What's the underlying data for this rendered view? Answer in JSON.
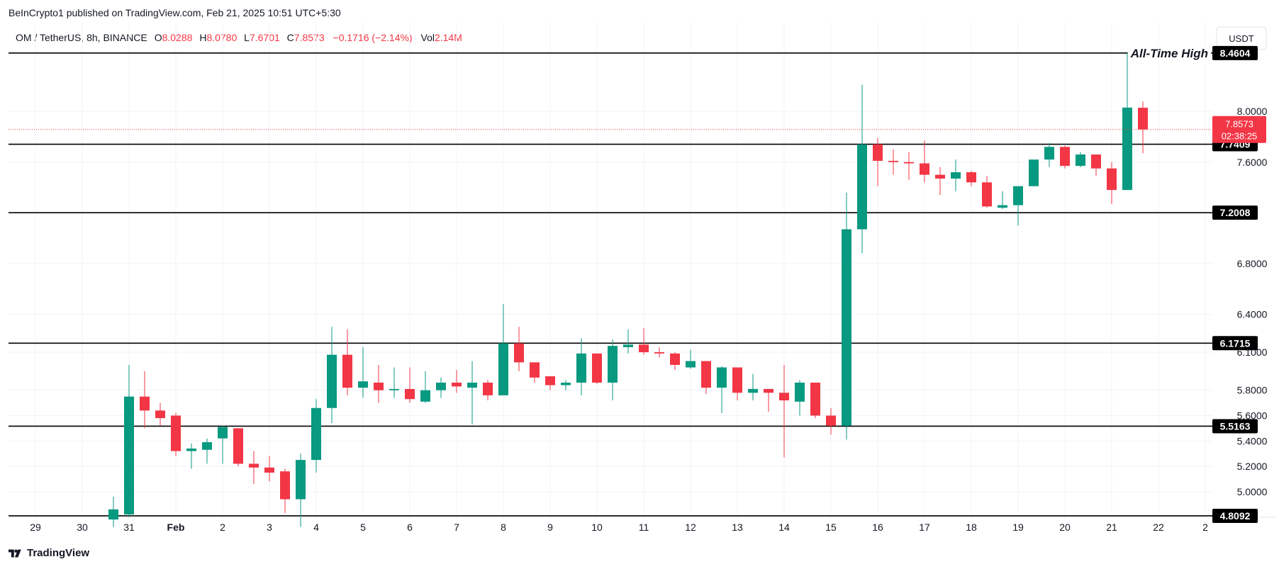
{
  "header": {
    "published": "BeInCrypto1 published on TradingView.com, Feb 21, 2025 10:51 UTC+5:30",
    "symbol": "OM / TetherUS, 8h, BINANCE",
    "o_label": "O",
    "o_value": "8.0288",
    "h_label": "H",
    "h_value": "8.0780",
    "l_label": "L",
    "l_value": "7.6701",
    "c_label": "C",
    "c_value": "7.8573",
    "change": "−0.1716 (−2.14%)",
    "vol_label": "Vol",
    "vol_value": "2.14M"
  },
  "toolbar": {
    "currency_button": "USDT"
  },
  "annotation": {
    "ath_text": "All-Time High"
  },
  "current_price": {
    "price": "7.8573",
    "countdown": "02:38:25"
  },
  "footer": {
    "brand": "TradingView"
  },
  "colors": {
    "up": "#089981",
    "down": "#f23645",
    "level": "#000000",
    "grid": "#f0f3fa",
    "text": "#131722"
  },
  "chart_data": {
    "type": "candlestick",
    "title": "OM / TetherUS, 8h, BINANCE",
    "xlabel": "",
    "ylabel": "",
    "ylim": [
      4.63,
      8.7
    ],
    "y_ticks": [
      "8.0000",
      "7.6000",
      "6.8000",
      "6.4000",
      "6.1000",
      "5.8000",
      "5.6000",
      "5.4000",
      "5.2000",
      "5.0000"
    ],
    "x_ticks": [
      {
        "label": "29",
        "t": -5
      },
      {
        "label": "30",
        "t": -2
      },
      {
        "label": "31",
        "t": 1
      },
      {
        "label": "Feb",
        "t": 4
      },
      {
        "label": "2",
        "t": 7
      },
      {
        "label": "3",
        "t": 10
      },
      {
        "label": "4",
        "t": 13
      },
      {
        "label": "5",
        "t": 16
      },
      {
        "label": "6",
        "t": 19
      },
      {
        "label": "7",
        "t": 22
      },
      {
        "label": "8",
        "t": 25
      },
      {
        "label": "9",
        "t": 28
      },
      {
        "label": "10",
        "t": 31
      },
      {
        "label": "11",
        "t": 34
      },
      {
        "label": "12",
        "t": 37
      },
      {
        "label": "13",
        "t": 40
      },
      {
        "label": "14",
        "t": 43
      },
      {
        "label": "15",
        "t": 46
      },
      {
        "label": "16",
        "t": 49
      },
      {
        "label": "17",
        "t": 52
      },
      {
        "label": "18",
        "t": 55
      },
      {
        "label": "19",
        "t": 58
      },
      {
        "label": "20",
        "t": 61
      },
      {
        "label": "21",
        "t": 64
      },
      {
        "label": "22",
        "t": 67
      },
      {
        "label": "2",
        "t": 70
      }
    ],
    "levels": [
      {
        "value": 8.4604,
        "label": "8.4604"
      },
      {
        "value": 7.7409,
        "label": "7.7409"
      },
      {
        "value": 7.2008,
        "label": "7.2008"
      },
      {
        "value": 6.1715,
        "label": "6.1715"
      },
      {
        "value": 5.5163,
        "label": "5.5163"
      },
      {
        "value": 4.8092,
        "label": "4.8092"
      }
    ],
    "candles": [
      {
        "o": 4.78,
        "h": 4.96,
        "l": 4.72,
        "c": 4.86
      },
      {
        "o": 4.82,
        "h": 6.0,
        "l": 4.8,
        "c": 5.75
      },
      {
        "o": 5.75,
        "h": 5.95,
        "l": 5.5,
        "c": 5.64
      },
      {
        "o": 5.64,
        "h": 5.7,
        "l": 5.52,
        "c": 5.58
      },
      {
        "o": 5.6,
        "h": 5.62,
        "l": 5.28,
        "c": 5.32
      },
      {
        "o": 5.32,
        "h": 5.38,
        "l": 5.18,
        "c": 5.34
      },
      {
        "o": 5.33,
        "h": 5.42,
        "l": 5.22,
        "c": 5.39
      },
      {
        "o": 5.42,
        "h": 5.52,
        "l": 5.22,
        "c": 5.51
      },
      {
        "o": 5.5,
        "h": 5.5,
        "l": 5.2,
        "c": 5.22
      },
      {
        "o": 5.22,
        "h": 5.32,
        "l": 5.06,
        "c": 5.19
      },
      {
        "o": 5.19,
        "h": 5.28,
        "l": 5.08,
        "c": 5.15
      },
      {
        "o": 5.16,
        "h": 5.18,
        "l": 4.83,
        "c": 4.94
      },
      {
        "o": 4.94,
        "h": 5.3,
        "l": 4.72,
        "c": 5.25
      },
      {
        "o": 5.25,
        "h": 5.73,
        "l": 5.15,
        "c": 5.66
      },
      {
        "o": 5.66,
        "h": 6.3,
        "l": 5.54,
        "c": 6.08
      },
      {
        "o": 6.08,
        "h": 6.28,
        "l": 5.76,
        "c": 5.82
      },
      {
        "o": 5.82,
        "h": 6.14,
        "l": 5.74,
        "c": 5.87
      },
      {
        "o": 5.86,
        "h": 6.0,
        "l": 5.7,
        "c": 5.8
      },
      {
        "o": 5.8,
        "h": 5.98,
        "l": 5.74,
        "c": 5.81
      },
      {
        "o": 5.81,
        "h": 5.98,
        "l": 5.7,
        "c": 5.73
      },
      {
        "o": 5.71,
        "h": 5.95,
        "l": 5.7,
        "c": 5.8
      },
      {
        "o": 5.8,
        "h": 5.9,
        "l": 5.74,
        "c": 5.86
      },
      {
        "o": 5.86,
        "h": 5.96,
        "l": 5.78,
        "c": 5.83
      },
      {
        "o": 5.82,
        "h": 6.03,
        "l": 5.53,
        "c": 5.86
      },
      {
        "o": 5.86,
        "h": 5.88,
        "l": 5.72,
        "c": 5.76
      },
      {
        "o": 5.76,
        "h": 6.48,
        "l": 5.77,
        "c": 6.17
      },
      {
        "o": 6.17,
        "h": 6.3,
        "l": 5.95,
        "c": 6.02
      },
      {
        "o": 6.02,
        "h": 6.02,
        "l": 5.86,
        "c": 5.9
      },
      {
        "o": 5.91,
        "h": 5.9,
        "l": 5.8,
        "c": 5.84
      },
      {
        "o": 5.84,
        "h": 5.88,
        "l": 5.8,
        "c": 5.86
      },
      {
        "o": 5.86,
        "h": 6.21,
        "l": 5.76,
        "c": 6.09
      },
      {
        "o": 6.09,
        "h": 6.09,
        "l": 5.85,
        "c": 5.86
      },
      {
        "o": 5.86,
        "h": 6.2,
        "l": 5.72,
        "c": 6.15
      },
      {
        "o": 6.14,
        "h": 6.28,
        "l": 6.09,
        "c": 6.16
      },
      {
        "o": 6.16,
        "h": 6.29,
        "l": 6.08,
        "c": 6.1
      },
      {
        "o": 6.1,
        "h": 6.14,
        "l": 6.06,
        "c": 6.09
      },
      {
        "o": 6.09,
        "h": 6.1,
        "l": 5.96,
        "c": 6.0
      },
      {
        "o": 5.98,
        "h": 6.12,
        "l": 5.97,
        "c": 6.03
      },
      {
        "o": 6.03,
        "h": 6.03,
        "l": 5.77,
        "c": 5.82
      },
      {
        "o": 5.82,
        "h": 5.99,
        "l": 5.62,
        "c": 5.98
      },
      {
        "o": 5.98,
        "h": 5.98,
        "l": 5.72,
        "c": 5.78
      },
      {
        "o": 5.78,
        "h": 5.93,
        "l": 5.72,
        "c": 5.81
      },
      {
        "o": 5.81,
        "h": 5.81,
        "l": 5.63,
        "c": 5.78
      },
      {
        "o": 5.78,
        "h": 6.0,
        "l": 5.27,
        "c": 5.72
      },
      {
        "o": 5.71,
        "h": 5.88,
        "l": 5.6,
        "c": 5.86
      },
      {
        "o": 5.86,
        "h": 5.86,
        "l": 5.58,
        "c": 5.6
      },
      {
        "o": 5.6,
        "h": 5.66,
        "l": 5.45,
        "c": 5.52
      },
      {
        "o": 5.52,
        "h": 7.36,
        "l": 5.41,
        "c": 7.07
      },
      {
        "o": 7.07,
        "h": 8.21,
        "l": 6.88,
        "c": 7.74
      },
      {
        "o": 7.74,
        "h": 7.79,
        "l": 7.41,
        "c": 7.61
      },
      {
        "o": 7.61,
        "h": 7.7,
        "l": 7.5,
        "c": 7.6
      },
      {
        "o": 7.6,
        "h": 7.68,
        "l": 7.46,
        "c": 7.59
      },
      {
        "o": 7.59,
        "h": 7.77,
        "l": 7.44,
        "c": 7.5
      },
      {
        "o": 7.5,
        "h": 7.56,
        "l": 7.34,
        "c": 7.47
      },
      {
        "o": 7.47,
        "h": 7.62,
        "l": 7.37,
        "c": 7.52
      },
      {
        "o": 7.52,
        "h": 7.53,
        "l": 7.41,
        "c": 7.44
      },
      {
        "o": 7.44,
        "h": 7.49,
        "l": 7.24,
        "c": 7.25
      },
      {
        "o": 7.24,
        "h": 7.37,
        "l": 7.23,
        "c": 7.26
      },
      {
        "o": 7.26,
        "h": 7.39,
        "l": 7.1,
        "c": 7.41
      },
      {
        "o": 7.41,
        "h": 7.6,
        "l": 7.41,
        "c": 7.62
      },
      {
        "o": 7.62,
        "h": 7.75,
        "l": 7.56,
        "c": 7.72
      },
      {
        "o": 7.72,
        "h": 7.73,
        "l": 7.55,
        "c": 7.57
      },
      {
        "o": 7.57,
        "h": 7.68,
        "l": 7.56,
        "c": 7.66
      },
      {
        "o": 7.66,
        "h": 7.66,
        "l": 7.49,
        "c": 7.55
      },
      {
        "o": 7.55,
        "h": 7.6,
        "l": 7.27,
        "c": 7.38
      },
      {
        "o": 7.38,
        "h": 8.46,
        "l": 7.38,
        "c": 8.03
      },
      {
        "o": 8.0288,
        "h": 8.078,
        "l": 7.6701,
        "c": 7.8573
      }
    ]
  }
}
